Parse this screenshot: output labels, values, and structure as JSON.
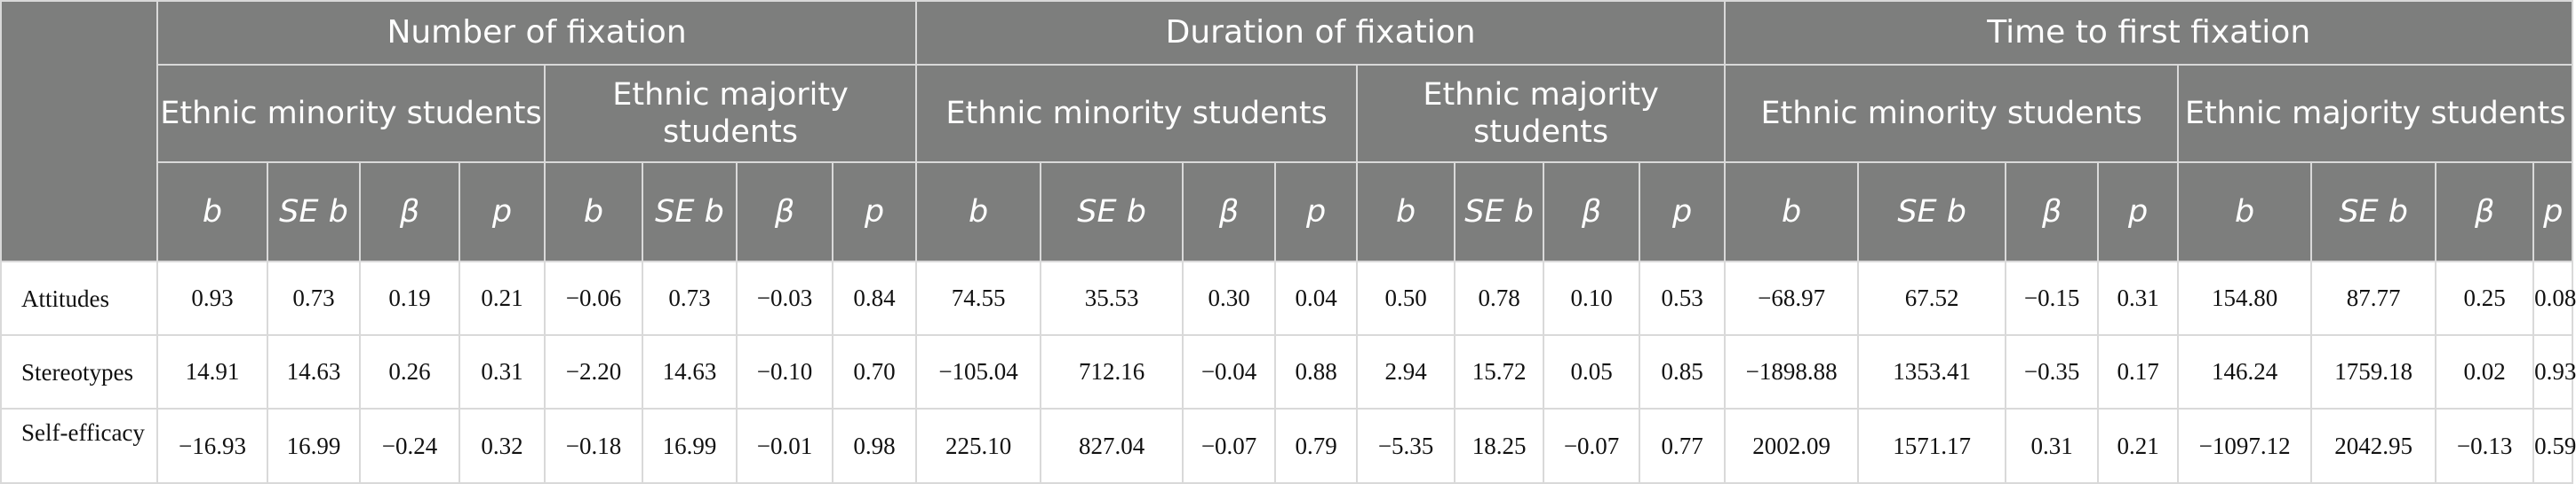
{
  "groups": [
    "Number of fixation",
    "Duration of fixation",
    "Time to first fixation"
  ],
  "subgroups": [
    "Ethnic minority students",
    "Ethnic majority students",
    "Ethnic minority students",
    "Ethnic majority students",
    "Ethnic minority students",
    "Ethnic majority students"
  ],
  "stats": [
    "b",
    "SE b",
    "β",
    "p",
    "b",
    "SE b",
    "β",
    "p",
    "b",
    "SE b",
    "β",
    "p",
    "b",
    "SE b",
    "β",
    "p",
    "b",
    "SE b",
    "β",
    "p",
    "b",
    "SE b",
    "β",
    "p"
  ],
  "rows": [
    {
      "label": "Attitudes",
      "values": [
        "0.93",
        "0.73",
        "0.19",
        "0.21",
        "−0.06",
        "0.73",
        "−0.03",
        "0.84",
        "74.55",
        "35.53",
        "0.30",
        "0.04",
        "0.50",
        "0.78",
        "0.10",
        "0.53",
        "−68.97",
        "67.52",
        "−0.15",
        "0.31",
        "154.80",
        "87.77",
        "0.25",
        "0.08"
      ]
    },
    {
      "label": "Stereotypes",
      "values": [
        "14.91",
        "14.63",
        "0.26",
        "0.31",
        "−2.20",
        "14.63",
        "−0.10",
        "0.70",
        "−105.04",
        "712.16",
        "−0.04",
        "0.88",
        "2.94",
        "15.72",
        "0.05",
        "0.85",
        "−1898.88",
        "1353.41",
        "−0.35",
        "0.17",
        "146.24",
        "1759.18",
        "0.02",
        "0.93"
      ]
    },
    {
      "label": "Self-efficacy",
      "values": [
        "−16.93",
        "16.99",
        "−0.24",
        "0.32",
        "−0.18",
        "16.99",
        "−0.01",
        "0.98",
        "225.10",
        "827.04",
        "−0.07",
        "0.79",
        "−5.35",
        "18.25",
        "−0.07",
        "0.77",
        "2002.09",
        "1571.17",
        "0.31",
        "0.21",
        "−1097.12",
        "2042.95",
        "−0.13",
        "0.59"
      ]
    }
  ]
}
